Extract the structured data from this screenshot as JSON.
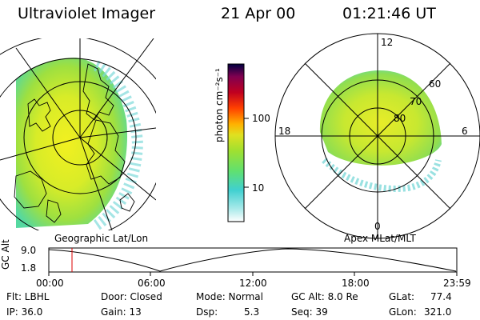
{
  "header": {
    "instrument": "Ultraviolet Imager",
    "date": "21 Apr 00",
    "time": "01:21:46 UT"
  },
  "colorbar": {
    "unit_label": "photon cm⁻²s⁻¹",
    "ticks": [
      "100",
      "10"
    ]
  },
  "geo_panel": {
    "label": "Geographic Lat/Lon"
  },
  "apex_panel": {
    "label": "Apex MLat/MLT",
    "mlt_labels": [
      "12",
      "18",
      "6",
      "0"
    ],
    "mlat_labels": [
      "60",
      "70",
      "80"
    ]
  },
  "altitude_plot": {
    "ylabel": "GC Alt",
    "yticks": [
      "9.0",
      "1.8"
    ],
    "xticks": [
      "00:00",
      "06:00",
      "12:00",
      "18:00",
      "23:59"
    ],
    "current_time_marker": "01:21"
  },
  "footer": {
    "filter": "Flt: LBHL",
    "door": "Door: Closed",
    "mode": "Mode: Normal",
    "gc_alt": "GC Alt: 8.0 Re",
    "glat_label": "GLat:",
    "glat_value": "77.4",
    "ip": "IP: 36.0",
    "gain": "Gain: 13",
    "dsp_label": "Dsp:",
    "dsp_value": "5.3",
    "seq": "Seq: 39",
    "glon_label": "GLon:",
    "glon_value": "321.0"
  },
  "colors": {
    "scale": [
      "#ffffff",
      "#aaeaea",
      "#40d0d0",
      "#60e070",
      "#a0e030",
      "#e0e020",
      "#ffb000",
      "#ff4000",
      "#c00020",
      "#800050",
      "#000040"
    ],
    "marker": "#dd0000"
  }
}
